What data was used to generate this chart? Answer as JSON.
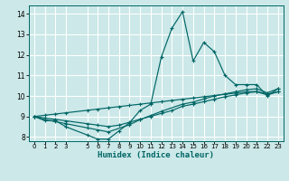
{
  "title": "",
  "xlabel": "Humidex (Indice chaleur)",
  "ylabel": "",
  "bg_color": "#cce8e8",
  "grid_color": "#ffffff",
  "line_color": "#006666",
  "xlim": [
    -0.5,
    23.5
  ],
  "ylim": [
    7.8,
    14.4
  ],
  "xticks": [
    0,
    1,
    2,
    3,
    5,
    6,
    7,
    8,
    9,
    10,
    11,
    12,
    13,
    14,
    15,
    16,
    17,
    18,
    19,
    20,
    21,
    22,
    23
  ],
  "yticks": [
    8,
    9,
    10,
    11,
    12,
    13,
    14
  ],
  "lines": [
    {
      "x": [
        0,
        1,
        2,
        3,
        5,
        6,
        7,
        8,
        9,
        10,
        11,
        12,
        13,
        14,
        15,
        16,
        17,
        18,
        19,
        20,
        21,
        22,
        23
      ],
      "y": [
        9.0,
        8.8,
        8.8,
        8.5,
        8.1,
        7.9,
        7.9,
        8.3,
        8.7,
        9.3,
        9.6,
        11.9,
        13.3,
        14.1,
        11.7,
        12.6,
        12.15,
        11.0,
        10.55,
        10.55,
        10.55,
        10.0,
        10.35
      ]
    },
    {
      "x": [
        0,
        1,
        2,
        3,
        5,
        6,
        7,
        9,
        10,
        11,
        12,
        14,
        15,
        16,
        17,
        18,
        19,
        20,
        21,
        22,
        23
      ],
      "y": [
        9.0,
        8.85,
        8.75,
        8.65,
        8.45,
        8.35,
        8.25,
        8.6,
        8.85,
        9.05,
        9.25,
        9.6,
        9.7,
        9.85,
        10.0,
        10.1,
        10.2,
        10.3,
        10.35,
        10.15,
        10.35
      ]
    },
    {
      "x": [
        0,
        1,
        2,
        3,
        5,
        6,
        7,
        8,
        9,
        10,
        11,
        12,
        13,
        14,
        15,
        16,
        17,
        18,
        19,
        20,
        21,
        22,
        23
      ],
      "y": [
        9.0,
        8.93,
        8.86,
        8.79,
        8.65,
        8.58,
        8.51,
        8.58,
        8.72,
        8.87,
        9.01,
        9.15,
        9.29,
        9.5,
        9.6,
        9.72,
        9.84,
        9.96,
        10.05,
        10.15,
        10.2,
        10.05,
        10.2
      ]
    },
    {
      "x": [
        0,
        1,
        2,
        3,
        5,
        6,
        7,
        8,
        9,
        10,
        11,
        12,
        13,
        14,
        15,
        16,
        17,
        18,
        19,
        20,
        21,
        22,
        23
      ],
      "y": [
        9.0,
        9.06,
        9.12,
        9.18,
        9.3,
        9.36,
        9.42,
        9.48,
        9.54,
        9.6,
        9.66,
        9.72,
        9.78,
        9.84,
        9.9,
        9.96,
        10.02,
        10.08,
        10.14,
        10.2,
        10.22,
        10.1,
        10.2
      ]
    }
  ]
}
